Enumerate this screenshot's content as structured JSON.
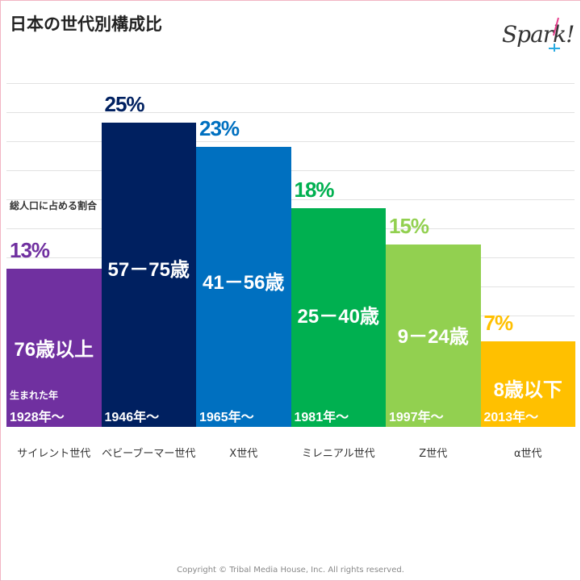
{
  "title": "日本の世代別構成比",
  "logo_text": "Spark!",
  "note_label": "総人口に占める割合",
  "born_label": "生まれた年",
  "copyright": "Copyright © Tribal Media House, Inc. All rights reserved.",
  "chart_data": {
    "type": "bar",
    "title": "日本の世代別構成比",
    "xlabel": "",
    "ylabel": "総人口に占める割合",
    "ylim": [
      0,
      25
    ],
    "grid": true,
    "categories": [
      "サイレント世代",
      "ベビーブーマー世代",
      "X世代",
      "ミレニアル世代",
      "Z世代",
      "α世代"
    ],
    "values": [
      13,
      25,
      23,
      18,
      15,
      7
    ],
    "value_labels": [
      "13%",
      "25%",
      "23%",
      "18%",
      "15%",
      "7%"
    ],
    "age_ranges": [
      "76歳以上",
      "57－75歳",
      "41－56歳",
      "25－40歳",
      "9－24歳",
      "8歳以下"
    ],
    "birth_years": [
      "1928年～",
      "1946年～",
      "1965年～",
      "1981年～",
      "1997年～",
      "2013年～"
    ],
    "colors": [
      "#7030a0",
      "#002060",
      "#0070c0",
      "#00b050",
      "#92d050",
      "#ffc000"
    ]
  }
}
